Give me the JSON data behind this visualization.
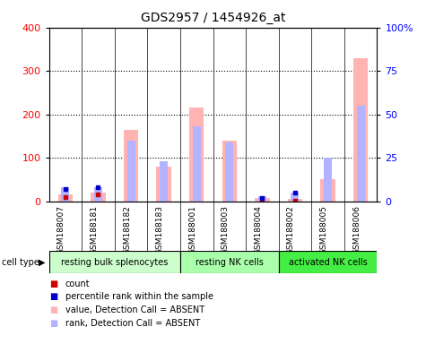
{
  "title": "GDS2957 / 1454926_at",
  "samples": [
    "GSM188007",
    "GSM188181",
    "GSM188182",
    "GSM188183",
    "GSM188001",
    "GSM188003",
    "GSM188004",
    "GSM188002",
    "GSM188005",
    "GSM188006"
  ],
  "value_absent": [
    15,
    20,
    165,
    80,
    215,
    140,
    8,
    5,
    50,
    330
  ],
  "rank_absent_pct": [
    8,
    8,
    35,
    23,
    43,
    34,
    3,
    5,
    25,
    55
  ],
  "count": [
    10,
    15,
    0,
    0,
    0,
    0,
    5,
    2,
    0,
    0
  ],
  "percentile": [
    7,
    8,
    0,
    0,
    0,
    0,
    2,
    5,
    0,
    0
  ],
  "cell_groups": [
    {
      "label": "resting bulk splenocytes",
      "start": 0,
      "end": 4,
      "color": "#ccffcc"
    },
    {
      "label": "resting NK cells",
      "start": 4,
      "end": 7,
      "color": "#aaffaa"
    },
    {
      "label": "activated NK cells",
      "start": 7,
      "end": 10,
      "color": "#44ee44"
    }
  ],
  "ylim_left": [
    0,
    400
  ],
  "ylim_right": [
    0,
    100
  ],
  "yticks_left": [
    0,
    100,
    200,
    300,
    400
  ],
  "yticks_right": [
    0,
    25,
    50,
    75,
    100
  ],
  "ytick_labels_right": [
    "0",
    "25",
    "50",
    "75",
    "100%"
  ],
  "color_value_absent": "#ffb3b3",
  "color_rank_absent": "#b3b3ff",
  "color_count": "#cc0000",
  "color_percentile": "#0000cc",
  "sample_bg_color": "#d0d0d0",
  "plot_bg_color": "#ffffff",
  "legend_items": [
    {
      "label": "count",
      "color": "#cc0000"
    },
    {
      "label": "percentile rank within the sample",
      "color": "#0000cc"
    },
    {
      "label": "value, Detection Call = ABSENT",
      "color": "#ffb3b3"
    },
    {
      "label": "rank, Detection Call = ABSENT",
      "color": "#b3b3ff"
    }
  ],
  "cell_type_label": "cell type"
}
